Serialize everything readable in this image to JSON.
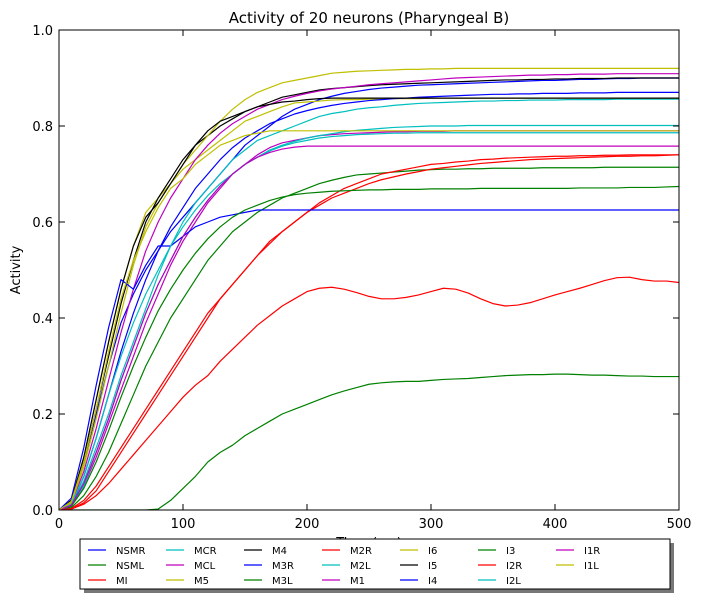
{
  "chart_data": {
    "type": "line",
    "title": "Activity of 20 neurons (Pharyngeal B)",
    "xlabel": "Time (ms)",
    "ylabel": "Activity",
    "xlim": [
      0,
      500
    ],
    "ylim": [
      0,
      1.0
    ],
    "x_ticks": [
      0,
      100,
      200,
      300,
      400,
      500
    ],
    "y_ticks": [
      0.0,
      0.2,
      0.4,
      0.6,
      0.8,
      1.0
    ],
    "x_tick_labels": [
      "0",
      "100",
      "200",
      "300",
      "400",
      "500"
    ],
    "y_tick_labels": [
      "0.0",
      "0.2",
      "0.4",
      "0.6",
      "0.8",
      "1.0"
    ],
    "grid": false,
    "legend_placement": "below",
    "legend_columns": 7,
    "x": [
      0,
      10,
      20,
      30,
      40,
      50,
      60,
      70,
      80,
      90,
      100,
      110,
      120,
      130,
      140,
      150,
      160,
      170,
      180,
      190,
      200,
      210,
      220,
      230,
      240,
      250,
      260,
      270,
      280,
      290,
      300,
      310,
      320,
      330,
      340,
      350,
      360,
      370,
      380,
      390,
      400,
      410,
      420,
      430,
      440,
      450,
      460,
      470,
      480,
      490,
      500
    ],
    "series": [
      {
        "name": "NSMR",
        "color": "#0000ff",
        "values": [
          0,
          0.02,
          0.1,
          0.2,
          0.3,
          0.39,
          0.45,
          0.5,
          0.54,
          0.58,
          0.61,
          0.64,
          0.67,
          0.7,
          0.73,
          0.76,
          0.78,
          0.8,
          0.82,
          0.835,
          0.845,
          0.855,
          0.862,
          0.868,
          0.872,
          0.876,
          0.879,
          0.881,
          0.883,
          0.885,
          0.886,
          0.887,
          0.888,
          0.889,
          0.89,
          0.891,
          0.892,
          0.893,
          0.894,
          0.895,
          0.895,
          0.896,
          0.897,
          0.897,
          0.898,
          0.899,
          0.899,
          0.9,
          0.9,
          0.9,
          0.9
        ]
      },
      {
        "name": "NSML",
        "color": "#008000",
        "values": [
          0,
          0.005,
          0.03,
          0.07,
          0.12,
          0.18,
          0.24,
          0.3,
          0.35,
          0.4,
          0.44,
          0.48,
          0.52,
          0.55,
          0.58,
          0.6,
          0.62,
          0.635,
          0.65,
          0.66,
          0.67,
          0.68,
          0.687,
          0.693,
          0.698,
          0.7,
          0.702,
          0.704,
          0.706,
          0.708,
          0.709,
          0.71,
          0.71,
          0.711,
          0.711,
          0.712,
          0.712,
          0.712,
          0.712,
          0.713,
          0.713,
          0.713,
          0.713,
          0.713,
          0.714,
          0.714,
          0.714,
          0.714,
          0.714,
          0.714,
          0.714
        ]
      },
      {
        "name": "MI",
        "color": "#ff0000",
        "values": [
          0,
          0.002,
          0.015,
          0.04,
          0.08,
          0.12,
          0.16,
          0.2,
          0.24,
          0.28,
          0.32,
          0.36,
          0.4,
          0.44,
          0.47,
          0.5,
          0.53,
          0.56,
          0.58,
          0.6,
          0.62,
          0.64,
          0.655,
          0.67,
          0.68,
          0.69,
          0.7,
          0.705,
          0.71,
          0.715,
          0.72,
          0.722,
          0.725,
          0.727,
          0.73,
          0.731,
          0.733,
          0.734,
          0.735,
          0.736,
          0.737,
          0.737,
          0.738,
          0.738,
          0.739,
          0.739,
          0.74,
          0.74,
          0.74,
          0.74,
          0.74
        ]
      },
      {
        "name": "MCR",
        "color": "#00bfbf",
        "values": [
          0,
          0.01,
          0.06,
          0.13,
          0.2,
          0.28,
          0.35,
          0.42,
          0.49,
          0.55,
          0.6,
          0.64,
          0.67,
          0.7,
          0.73,
          0.75,
          0.77,
          0.78,
          0.79,
          0.8,
          0.81,
          0.82,
          0.826,
          0.83,
          0.835,
          0.838,
          0.84,
          0.843,
          0.845,
          0.847,
          0.848,
          0.849,
          0.85,
          0.851,
          0.852,
          0.852,
          0.853,
          0.853,
          0.854,
          0.854,
          0.854,
          0.855,
          0.855,
          0.855,
          0.855,
          0.856,
          0.856,
          0.856,
          0.856,
          0.856,
          0.856
        ]
      },
      {
        "name": "MCL",
        "color": "#bf00bf",
        "values": [
          0,
          0.008,
          0.05,
          0.11,
          0.18,
          0.25,
          0.32,
          0.39,
          0.45,
          0.51,
          0.56,
          0.6,
          0.64,
          0.67,
          0.7,
          0.72,
          0.74,
          0.755,
          0.765,
          0.77,
          0.775,
          0.78,
          0.782,
          0.784,
          0.785,
          0.786,
          0.787,
          0.788,
          0.788,
          0.789,
          0.789,
          0.789,
          0.79,
          0.79,
          0.79,
          0.79,
          0.79,
          0.79,
          0.79,
          0.79,
          0.79,
          0.79,
          0.79,
          0.79,
          0.79,
          0.79,
          0.79,
          0.79,
          0.79,
          0.79,
          0.79
        ]
      },
      {
        "name": "M5",
        "color": "#bfbf00",
        "values": [
          0,
          0.02,
          0.11,
          0.23,
          0.35,
          0.46,
          0.55,
          0.62,
          0.65,
          0.68,
          0.71,
          0.73,
          0.75,
          0.77,
          0.79,
          0.81,
          0.82,
          0.83,
          0.84,
          0.848,
          0.85,
          0.852,
          0.854,
          0.855,
          0.855,
          0.856,
          0.856,
          0.857,
          0.857,
          0.857,
          0.858,
          0.858,
          0.858,
          0.858,
          0.858,
          0.858,
          0.858,
          0.858,
          0.858,
          0.858,
          0.858,
          0.858,
          0.858,
          0.858,
          0.858,
          0.858,
          0.858,
          0.858,
          0.858,
          0.858,
          0.858
        ]
      },
      {
        "name": "M4",
        "color": "#000000",
        "values": [
          0,
          0.02,
          0.1,
          0.21,
          0.32,
          0.43,
          0.52,
          0.6,
          0.65,
          0.69,
          0.73,
          0.76,
          0.78,
          0.8,
          0.815,
          0.83,
          0.84,
          0.85,
          0.86,
          0.865,
          0.87,
          0.875,
          0.878,
          0.88,
          0.882,
          0.884,
          0.886,
          0.887,
          0.888,
          0.889,
          0.89,
          0.891,
          0.892,
          0.893,
          0.894,
          0.895,
          0.896,
          0.896,
          0.897,
          0.897,
          0.898,
          0.898,
          0.899,
          0.899,
          0.899,
          0.9,
          0.9,
          0.9,
          0.9,
          0.9,
          0.9
        ]
      },
      {
        "name": "M3R",
        "color": "#0000ff",
        "values": [
          0,
          0.01,
          0.07,
          0.15,
          0.24,
          0.33,
          0.41,
          0.48,
          0.54,
          0.59,
          0.63,
          0.67,
          0.7,
          0.73,
          0.755,
          0.775,
          0.79,
          0.805,
          0.815,
          0.825,
          0.832,
          0.838,
          0.843,
          0.847,
          0.85,
          0.853,
          0.855,
          0.857,
          0.858,
          0.86,
          0.861,
          0.862,
          0.863,
          0.864,
          0.865,
          0.866,
          0.866,
          0.867,
          0.867,
          0.868,
          0.868,
          0.868,
          0.869,
          0.869,
          0.869,
          0.87,
          0.87,
          0.87,
          0.87,
          0.87,
          0.87
        ]
      },
      {
        "name": "M3L",
        "color": "#008000",
        "values": [
          0,
          0.0,
          0.0,
          0.0,
          0.0,
          0.0,
          0.0,
          0.0,
          0.002,
          0.02,
          0.045,
          0.07,
          0.1,
          0.12,
          0.135,
          0.155,
          0.17,
          0.185,
          0.2,
          0.21,
          0.22,
          0.23,
          0.24,
          0.248,
          0.255,
          0.262,
          0.265,
          0.267,
          0.268,
          0.268,
          0.27,
          0.272,
          0.273,
          0.274,
          0.276,
          0.278,
          0.28,
          0.281,
          0.282,
          0.282,
          0.283,
          0.283,
          0.282,
          0.281,
          0.281,
          0.28,
          0.279,
          0.279,
          0.278,
          0.278,
          0.278
        ]
      },
      {
        "name": "M2R",
        "color": "#ff0000",
        "values": [
          0,
          0.003,
          0.02,
          0.05,
          0.09,
          0.13,
          0.17,
          0.21,
          0.25,
          0.29,
          0.33,
          0.37,
          0.41,
          0.44,
          0.47,
          0.5,
          0.53,
          0.555,
          0.58,
          0.6,
          0.62,
          0.635,
          0.65,
          0.66,
          0.67,
          0.68,
          0.688,
          0.694,
          0.7,
          0.705,
          0.71,
          0.713,
          0.716,
          0.719,
          0.722,
          0.724,
          0.726,
          0.728,
          0.73,
          0.731,
          0.732,
          0.733,
          0.734,
          0.735,
          0.736,
          0.737,
          0.737,
          0.738,
          0.738,
          0.739,
          0.74
        ]
      },
      {
        "name": "M2L",
        "color": "#00bfbf",
        "values": [
          0,
          0.01,
          0.05,
          0.12,
          0.19,
          0.27,
          0.34,
          0.41,
          0.47,
          0.52,
          0.57,
          0.61,
          0.645,
          0.675,
          0.7,
          0.72,
          0.735,
          0.75,
          0.76,
          0.768,
          0.775,
          0.78,
          0.784,
          0.788,
          0.791,
          0.793,
          0.795,
          0.797,
          0.798,
          0.799,
          0.8,
          0.8,
          0.8,
          0.801,
          0.801,
          0.801,
          0.801,
          0.801,
          0.801,
          0.801,
          0.801,
          0.801,
          0.801,
          0.801,
          0.801,
          0.801,
          0.801,
          0.801,
          0.801,
          0.801,
          0.801
        ]
      },
      {
        "name": "M1",
        "color": "#bf00bf",
        "values": [
          0,
          0.015,
          0.08,
          0.17,
          0.27,
          0.37,
          0.46,
          0.54,
          0.6,
          0.65,
          0.69,
          0.73,
          0.76,
          0.785,
          0.805,
          0.82,
          0.835,
          0.845,
          0.855,
          0.862,
          0.868,
          0.873,
          0.877,
          0.88,
          0.883,
          0.886,
          0.888,
          0.89,
          0.892,
          0.894,
          0.896,
          0.898,
          0.9,
          0.901,
          0.902,
          0.903,
          0.904,
          0.905,
          0.906,
          0.906,
          0.907,
          0.907,
          0.908,
          0.908,
          0.908,
          0.909,
          0.909,
          0.909,
          0.909,
          0.909,
          0.909
        ]
      },
      {
        "name": "I6",
        "color": "#bfbf00",
        "values": [
          0,
          0.015,
          0.09,
          0.19,
          0.3,
          0.41,
          0.51,
          0.59,
          0.64,
          0.68,
          0.72,
          0.75,
          0.78,
          0.81,
          0.835,
          0.855,
          0.87,
          0.88,
          0.89,
          0.895,
          0.9,
          0.905,
          0.91,
          0.912,
          0.914,
          0.915,
          0.916,
          0.917,
          0.918,
          0.918,
          0.919,
          0.919,
          0.92,
          0.92,
          0.92,
          0.92,
          0.92,
          0.92,
          0.92,
          0.92,
          0.92,
          0.92,
          0.92,
          0.92,
          0.92,
          0.92,
          0.92,
          0.92,
          0.92,
          0.92,
          0.92
        ]
      },
      {
        "name": "I5",
        "color": "#000000",
        "values": [
          0,
          0.02,
          0.11,
          0.23,
          0.35,
          0.46,
          0.55,
          0.61,
          0.64,
          0.68,
          0.72,
          0.76,
          0.79,
          0.81,
          0.82,
          0.83,
          0.84,
          0.845,
          0.85,
          0.852,
          0.855,
          0.857,
          0.858,
          0.858,
          0.858,
          0.858,
          0.858,
          0.858,
          0.858,
          0.858,
          0.858,
          0.858,
          0.858,
          0.858,
          0.858,
          0.858,
          0.858,
          0.858,
          0.858,
          0.858,
          0.858,
          0.858,
          0.858,
          0.858,
          0.858,
          0.858,
          0.858,
          0.858,
          0.858,
          0.858,
          0.858
        ]
      },
      {
        "name": "I4",
        "color": "#0000ff",
        "values": [
          0,
          0.025,
          0.13,
          0.26,
          0.38,
          0.48,
          0.46,
          0.51,
          0.55,
          0.55,
          0.57,
          0.59,
          0.6,
          0.61,
          0.615,
          0.62,
          0.625,
          0.625,
          0.625,
          0.625,
          0.625,
          0.625,
          0.625,
          0.625,
          0.625,
          0.625,
          0.625,
          0.625,
          0.625,
          0.625,
          0.625,
          0.625,
          0.625,
          0.625,
          0.625,
          0.625,
          0.625,
          0.625,
          0.625,
          0.625,
          0.625,
          0.625,
          0.625,
          0.625,
          0.625,
          0.625,
          0.625,
          0.625,
          0.625,
          0.625,
          0.625
        ]
      },
      {
        "name": "I3",
        "color": "#008000",
        "values": [
          0,
          0.008,
          0.045,
          0.1,
          0.165,
          0.235,
          0.3,
          0.36,
          0.415,
          0.46,
          0.5,
          0.535,
          0.565,
          0.59,
          0.61,
          0.625,
          0.635,
          0.645,
          0.652,
          0.657,
          0.66,
          0.662,
          0.664,
          0.665,
          0.666,
          0.667,
          0.667,
          0.668,
          0.668,
          0.668,
          0.669,
          0.669,
          0.669,
          0.669,
          0.67,
          0.67,
          0.67,
          0.67,
          0.67,
          0.67,
          0.67,
          0.67,
          0.671,
          0.671,
          0.671,
          0.671,
          0.672,
          0.672,
          0.672,
          0.673,
          0.674
        ]
      },
      {
        "name": "I2R",
        "color": "#ff0000",
        "values": [
          0,
          0.002,
          0.012,
          0.03,
          0.055,
          0.085,
          0.115,
          0.145,
          0.175,
          0.205,
          0.235,
          0.26,
          0.28,
          0.31,
          0.335,
          0.36,
          0.385,
          0.405,
          0.425,
          0.44,
          0.455,
          0.462,
          0.464,
          0.46,
          0.453,
          0.445,
          0.44,
          0.44,
          0.443,
          0.448,
          0.455,
          0.462,
          0.46,
          0.452,
          0.44,
          0.43,
          0.425,
          0.427,
          0.432,
          0.44,
          0.448,
          0.455,
          0.462,
          0.47,
          0.478,
          0.484,
          0.485,
          0.48,
          0.477,
          0.477,
          0.474
        ]
      },
      {
        "name": "I2L",
        "color": "#00bfbf",
        "values": [
          0,
          0.012,
          0.07,
          0.15,
          0.24,
          0.32,
          0.39,
          0.45,
          0.5,
          0.55,
          0.59,
          0.625,
          0.655,
          0.68,
          0.7,
          0.72,
          0.735,
          0.748,
          0.758,
          0.765,
          0.77,
          0.775,
          0.778,
          0.78,
          0.782,
          0.783,
          0.784,
          0.785,
          0.785,
          0.786,
          0.786,
          0.786,
          0.786,
          0.786,
          0.786,
          0.786,
          0.786,
          0.786,
          0.786,
          0.786,
          0.786,
          0.786,
          0.786,
          0.786,
          0.786,
          0.786,
          0.786,
          0.786,
          0.786,
          0.786,
          0.786
        ]
      },
      {
        "name": "I1R",
        "color": "#bf00bf",
        "values": [
          0,
          0.01,
          0.055,
          0.12,
          0.19,
          0.27,
          0.34,
          0.41,
          0.47,
          0.52,
          0.57,
          0.61,
          0.645,
          0.675,
          0.7,
          0.72,
          0.735,
          0.745,
          0.752,
          0.756,
          0.758,
          0.758,
          0.758,
          0.758,
          0.758,
          0.758,
          0.758,
          0.758,
          0.758,
          0.758,
          0.758,
          0.758,
          0.758,
          0.758,
          0.758,
          0.758,
          0.758,
          0.758,
          0.758,
          0.758,
          0.758,
          0.758,
          0.758,
          0.758,
          0.758,
          0.758,
          0.758,
          0.758,
          0.758,
          0.758,
          0.758
        ]
      },
      {
        "name": "I1L",
        "color": "#bfbf00",
        "values": [
          0,
          0.018,
          0.1,
          0.21,
          0.33,
          0.44,
          0.52,
          0.58,
          0.63,
          0.67,
          0.69,
          0.72,
          0.74,
          0.76,
          0.77,
          0.78,
          0.785,
          0.79,
          0.79,
          0.79,
          0.79,
          0.79,
          0.79,
          0.79,
          0.79,
          0.79,
          0.79,
          0.79,
          0.79,
          0.79,
          0.79,
          0.79,
          0.79,
          0.79,
          0.79,
          0.79,
          0.79,
          0.79,
          0.79,
          0.79,
          0.79,
          0.79,
          0.79,
          0.79,
          0.79,
          0.79,
          0.79,
          0.79,
          0.79,
          0.79,
          0.79
        ]
      }
    ]
  }
}
